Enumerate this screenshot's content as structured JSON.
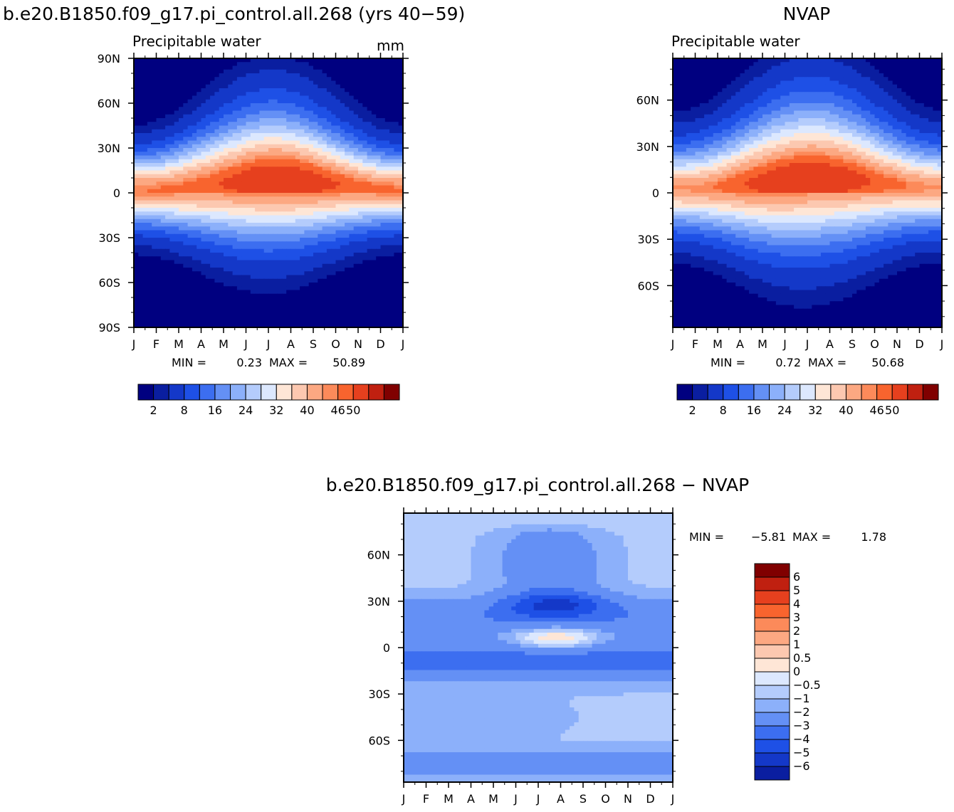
{
  "figure": {
    "title_left": "b.e20.B1850.f09_g17.pi_control.all.268 (yrs 40−59)",
    "title_right": "NVAP",
    "title_bottom": "b.e20.B1850.f09_g17.pi_control.all.268  −  NVAP",
    "min_label": "MIN =",
    "max_label": "MAX ="
  },
  "chart_data": [
    {
      "id": "model",
      "type": "heatmap",
      "title": "Precipitable water",
      "units": "mm",
      "x_tick_labels": [
        "J",
        "F",
        "M",
        "A",
        "M",
        "J",
        "J",
        "A",
        "S",
        "O",
        "N",
        "D",
        "J"
      ],
      "y_tick_labels": [
        "90N",
        "60N",
        "30N",
        "0",
        "30S",
        "60S",
        "90S"
      ],
      "y_ticks_deg": [
        90,
        60,
        30,
        0,
        -30,
        -60,
        -90
      ],
      "ylim": [
        -90,
        90
      ],
      "min": "0.23",
      "max": "50.89",
      "levels": [
        2,
        4,
        8,
        12,
        16,
        20,
        24,
        28,
        32,
        36,
        40,
        44,
        46,
        50
      ],
      "colorbar_labels": [
        "2",
        "8",
        "16",
        "24",
        "32",
        "40",
        "46",
        "50"
      ],
      "colorbar_label_index": [
        0,
        2,
        4,
        6,
        8,
        10,
        12,
        13
      ],
      "colors": [
        "#000080",
        "#0a1ea0",
        "#1438c8",
        "#1e50e6",
        "#3c6ef0",
        "#6490f5",
        "#8cb0fa",
        "#b4ccfc",
        "#dce8fe",
        "#fee6d6",
        "#fcc8b0",
        "#fca882",
        "#fc8a5a",
        "#f8642e",
        "#e6401e",
        "#c02010",
        "#800000"
      ]
    },
    {
      "id": "obs",
      "type": "heatmap",
      "title": "Precipitable water",
      "x_tick_labels": [
        "J",
        "F",
        "M",
        "A",
        "M",
        "J",
        "J",
        "A",
        "S",
        "O",
        "N",
        "D",
        "J"
      ],
      "y_tick_labels": [
        "60N",
        "30N",
        "0",
        "30S",
        "60S"
      ],
      "y_ticks_deg": [
        60,
        30,
        0,
        -30,
        -60
      ],
      "ylim": [
        -87,
        87
      ],
      "min": "0.72",
      "max": "50.68",
      "levels": [
        2,
        4,
        8,
        12,
        16,
        20,
        24,
        28,
        32,
        36,
        40,
        44,
        46,
        50
      ],
      "colorbar_labels": [
        "2",
        "8",
        "16",
        "24",
        "32",
        "40",
        "46",
        "50"
      ],
      "colorbar_label_index": [
        0,
        2,
        4,
        6,
        8,
        10,
        12,
        13
      ],
      "colors": [
        "#000080",
        "#0a1ea0",
        "#1438c8",
        "#1e50e6",
        "#3c6ef0",
        "#6490f5",
        "#8cb0fa",
        "#b4ccfc",
        "#dce8fe",
        "#fee6d6",
        "#fcc8b0",
        "#fca882",
        "#fc8a5a",
        "#f8642e",
        "#e6401e",
        "#c02010",
        "#800000"
      ]
    },
    {
      "id": "diff",
      "type": "heatmap",
      "x_tick_labels": [
        "J",
        "F",
        "M",
        "A",
        "M",
        "J",
        "J",
        "A",
        "S",
        "O",
        "N",
        "D",
        "J"
      ],
      "y_tick_labels": [
        "60N",
        "30N",
        "0",
        "30S",
        "60S"
      ],
      "y_ticks_deg": [
        60,
        30,
        0,
        -30,
        -60
      ],
      "ylim": [
        -87,
        87
      ],
      "min": "−5.81",
      "max": "1.78",
      "levels": [
        -6,
        -5,
        -4,
        -3,
        -2,
        -1,
        -0.5,
        0,
        0.5,
        1,
        2,
        3,
        4,
        5,
        6
      ],
      "colorbar_labels": [
        "6",
        "5",
        "4",
        "3",
        "2",
        "1",
        "0.5",
        "0",
        "−0.5",
        "−1",
        "−2",
        "−3",
        "−4",
        "−5",
        "−6"
      ],
      "colors": [
        "#000080",
        "#0a1ea0",
        "#1438c8",
        "#1e50e6",
        "#3c6ef0",
        "#6490f5",
        "#8cb0fa",
        "#b4ccfc",
        "#dce8fe",
        "#fee6d6",
        "#fcc8b0",
        "#fca882",
        "#fc8a5a",
        "#f8642e",
        "#e6401e",
        "#c02010",
        "#800000"
      ]
    }
  ]
}
